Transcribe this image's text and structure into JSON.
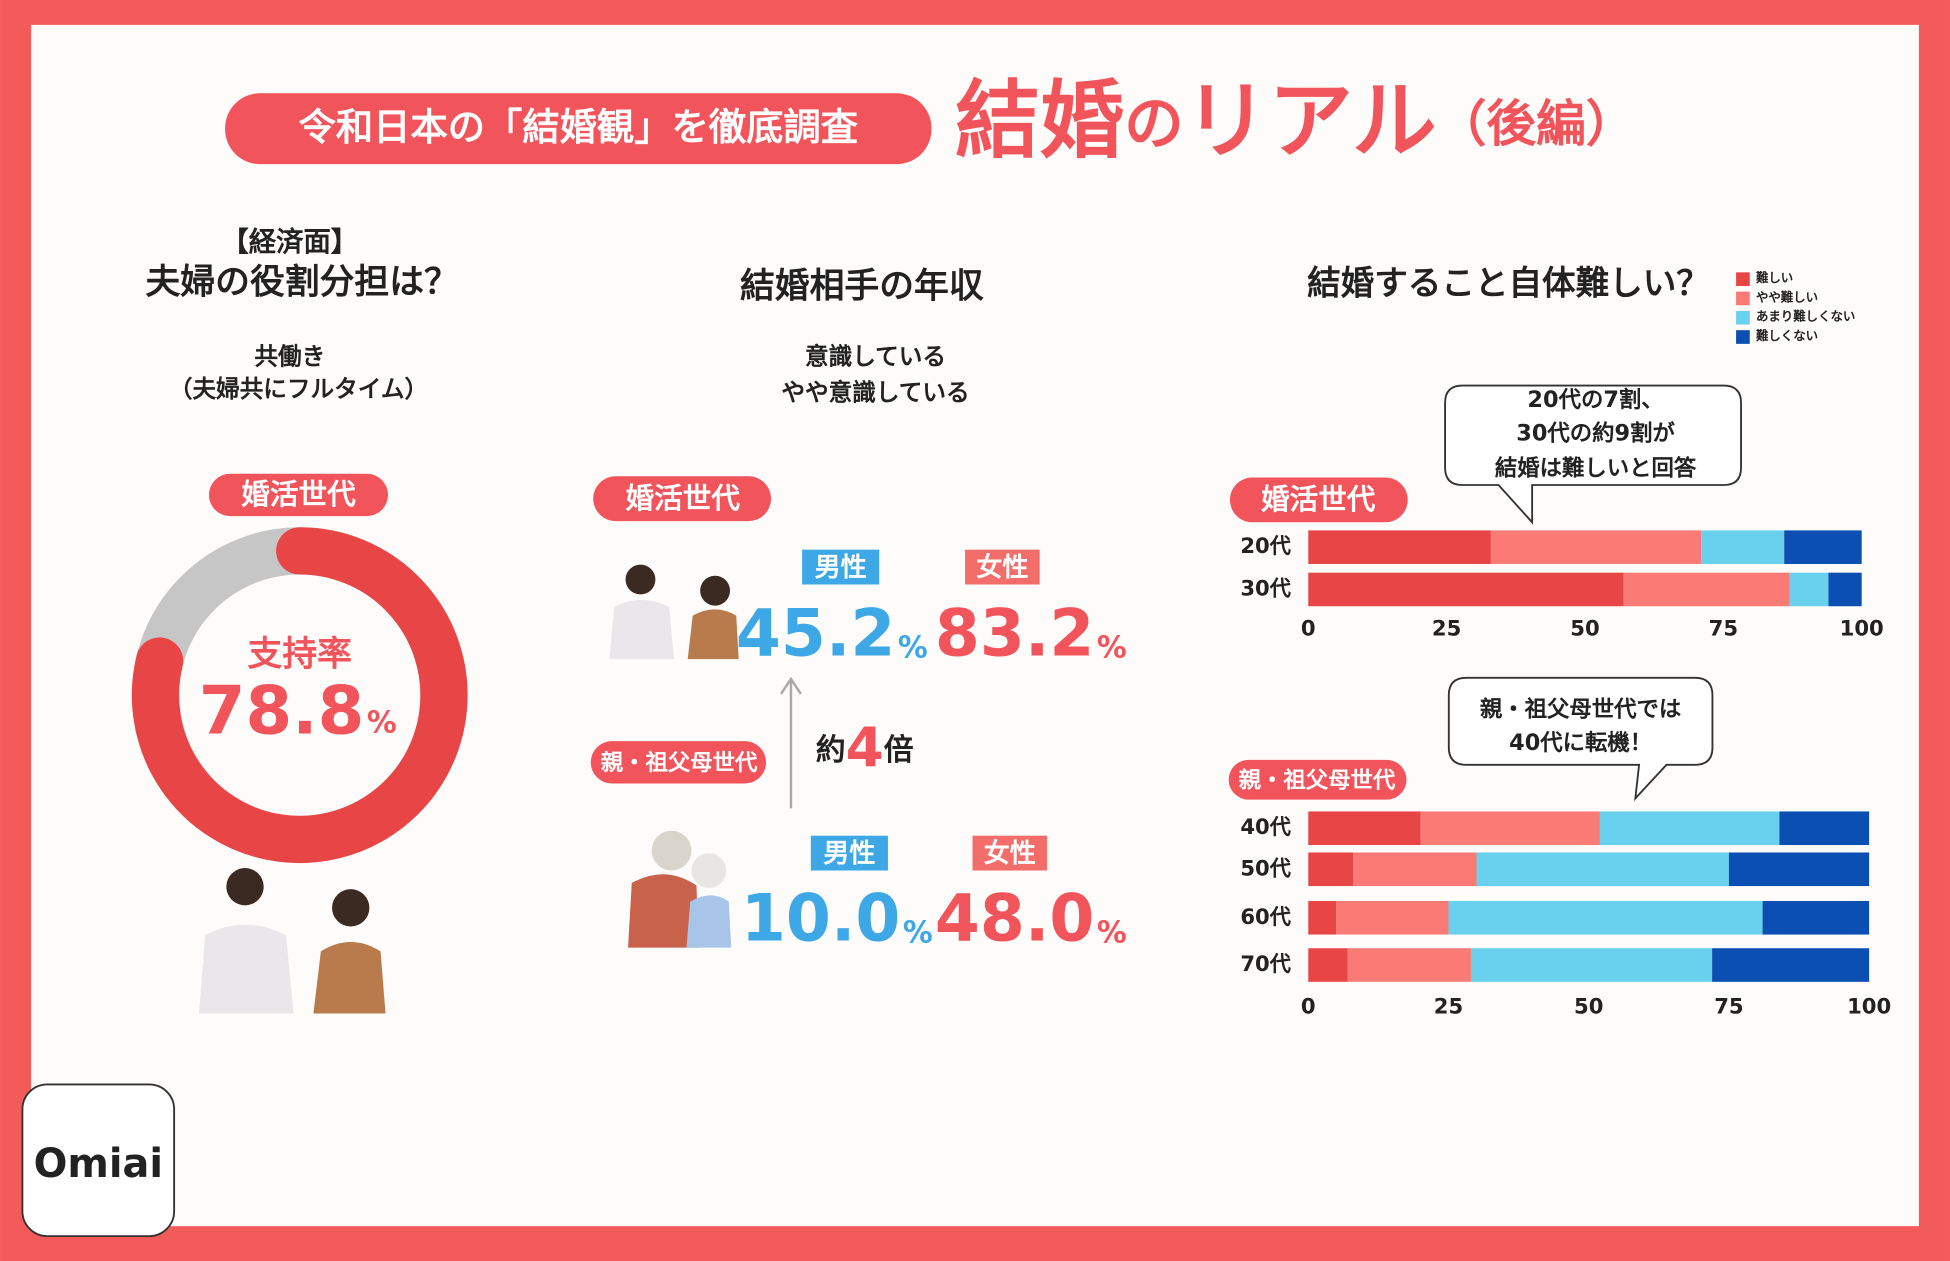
{
  "header": {
    "badge": "令和日本の「結婚観」を徹底調査",
    "title_parts": [
      "結婚",
      "の",
      "リアル",
      "（後編）"
    ]
  },
  "left": {
    "kicker": "【経済面】",
    "title": "夫婦の役割分担は？",
    "option_lines": [
      "共働き",
      "（夫婦共にフルタイム）"
    ],
    "badge": "婚活世代"
  },
  "middle": {
    "title": "結婚相手の年収",
    "option_lines": [
      "意識している",
      "やや意識している"
    ],
    "groups": [
      {
        "badge": "婚活世代",
        "male_label": "男性",
        "female_label": "女性",
        "male_value": "45.2",
        "female_value": "83.2",
        "unit": "%"
      },
      {
        "badge": "親・祖父母世代",
        "male_label": "男性",
        "female_label": "女性",
        "male_value": "10.0",
        "female_value": "48.0",
        "unit": "%"
      }
    ],
    "ratio": [
      "約",
      "4",
      "倍"
    ]
  },
  "right": {
    "title": "結婚すること自体難しい？",
    "badges": [
      "婚活世代",
      "親・祖父母世代"
    ],
    "callouts": [
      [
        "20代の7割、",
        "30代の約9割が",
        "結婚は難しいと回答"
      ],
      [
        "親・祖父母世代では",
        "40代に転機！"
      ]
    ]
  },
  "logo": "Omiai",
  "chart_data": [
    {
      "type": "donut",
      "title": "支持率",
      "values": [
        78.8
      ],
      "unit": "%",
      "color": "#e84646",
      "track_color": "#c6c6c6"
    },
    {
      "type": "stacked_bar",
      "categories": [
        "20代",
        "30代"
      ],
      "series": [
        {
          "name": "難しい",
          "color": "#e84646",
          "values": [
            33,
            57
          ]
        },
        {
          "name": "やや難しい",
          "color": "#fa7a75",
          "values": [
            38,
            30
          ]
        },
        {
          "name": "あまり難しくない",
          "color": "#69d0ee",
          "values": [
            15,
            7
          ]
        },
        {
          "name": "難しくない",
          "color": "#0b4fb3",
          "values": [
            14,
            6
          ]
        }
      ],
      "xlim": [
        0,
        100
      ],
      "xticks": [
        0,
        25,
        50,
        75,
        100
      ]
    },
    {
      "type": "stacked_bar",
      "categories": [
        "40代",
        "50代",
        "60代",
        "70代"
      ],
      "series": [
        {
          "color": "#e84646",
          "values": [
            20,
            8,
            5,
            7
          ]
        },
        {
          "color": "#fa7a75",
          "values": [
            32,
            22,
            20,
            22
          ]
        },
        {
          "color": "#69d0ee",
          "values": [
            32,
            45,
            56,
            43
          ]
        },
        {
          "color": "#0b4fb3",
          "values": [
            16,
            25,
            19,
            28
          ]
        }
      ],
      "xlim": [
        0,
        100
      ],
      "xticks": [
        0,
        25,
        50,
        75,
        100
      ]
    }
  ]
}
